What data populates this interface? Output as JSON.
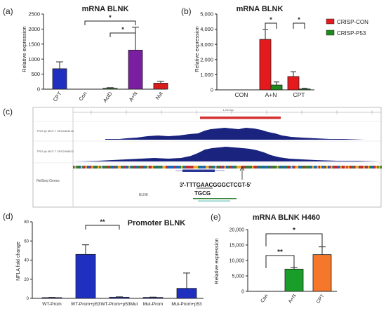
{
  "chart_data": [
    {
      "id": "a",
      "panel_label": "(a)",
      "type": "bar",
      "title": "mRNA BLNK",
      "ylabel": "Relative expression",
      "xlabel": "",
      "ylim": [
        0,
        2500
      ],
      "yticks": [
        "0",
        "500",
        "1000",
        "1500",
        "2000",
        "2500"
      ],
      "categories": [
        "CPT",
        "Con",
        "ActD",
        "A+N",
        "Nut"
      ],
      "values": [
        680,
        0,
        30,
        1300,
        200
      ],
      "errors": [
        230,
        0,
        20,
        760,
        60
      ],
      "colors": [
        "#1f2fbf",
        "#1f2fbf",
        "#2e9e2e",
        "#7b1fa2",
        "#d91c1c"
      ],
      "significance": [
        {
          "from": "Con",
          "to": "A+N",
          "label": "*"
        },
        {
          "from": "ActD",
          "to": "A+N",
          "label": "*"
        }
      ]
    },
    {
      "id": "b",
      "panel_label": "(b)",
      "type": "bar",
      "title": "mRNA BLNK",
      "ylabel": "Relative expression",
      "xlabel": "",
      "ylim": [
        0,
        5000
      ],
      "yticks": [
        "0",
        "1,000",
        "2,000",
        "3,000",
        "4,000",
        "5,000"
      ],
      "categories": [
        "CON",
        "A+N",
        "CPT"
      ],
      "series": [
        {
          "name": "CRISP-CON",
          "color": "#e41a1c",
          "values": [
            0,
            3330,
            880
          ],
          "errors": [
            0,
            650,
            320
          ]
        },
        {
          "name": "CRISP-P53",
          "color": "#1e8a1e",
          "values": [
            0,
            320,
            60
          ],
          "errors": [
            0,
            200,
            40
          ]
        }
      ],
      "legend_position": "right",
      "significance": [
        {
          "category": "A+N",
          "label": "*"
        },
        {
          "category": "CPT",
          "label": "*"
        }
      ]
    },
    {
      "id": "d",
      "panel_label": "(d)",
      "type": "bar",
      "title": "Promoter BLNK",
      "ylabel": "NFLA fold change",
      "xlabel": "",
      "ylim": [
        0,
        80
      ],
      "yticks": [
        "0",
        "20",
        "40",
        "60",
        "80"
      ],
      "categories": [
        "WT-Prom",
        "WT-Prom+p53",
        "WT-Prom+p53Mut",
        "Mut-Prom",
        "Mut-Prom+p53"
      ],
      "values": [
        0.8,
        46,
        1.2,
        1.0,
        10.5
      ],
      "errors": [
        0.2,
        10,
        0.4,
        0.3,
        16
      ],
      "colors": [
        "#1f2fbf",
        "#1f2fbf",
        "#1f2fbf",
        "#1f2fbf",
        "#1f2fbf"
      ],
      "significance": [
        {
          "from": "WT-Prom+p53",
          "to": "WT-Prom+p53Mut",
          "label": "**"
        }
      ]
    },
    {
      "id": "e",
      "panel_label": "(e)",
      "type": "bar",
      "title": "mRNA BLNK H460",
      "ylabel": "Relative expression",
      "xlabel": "",
      "ylim": [
        0,
        20000
      ],
      "yticks": [
        "0",
        "5,000",
        "10,000",
        "15,000",
        "20,000"
      ],
      "categories": [
        "Con",
        "A+N",
        "CPT"
      ],
      "values": [
        0,
        7200,
        11900
      ],
      "errors": [
        0,
        500,
        2500
      ],
      "colors": [
        "#1a9e2a",
        "#1a9e2a",
        "#f4772b"
      ],
      "significance": [
        {
          "from": "Con",
          "to": "A+N",
          "label": "**"
        },
        {
          "from": "Con",
          "to": "CPT",
          "label": "*"
        }
      ]
    }
  ],
  "panel_c": {
    "panel_label": "(c)",
    "ruler_label": "1,294 bp",
    "tracks": [
      {
        "label": "TP53 @ MCF-7 SRX2824416"
      },
      {
        "label": "TP53 @ MCF-7 SRX2908822"
      }
    ],
    "refseq_label": "RefSeq Genes",
    "gene_label": "BLNK",
    "sequence_top": "3'-TTTGAACGGGCTCGT-5'",
    "sequence_bottom": "TGCG"
  }
}
